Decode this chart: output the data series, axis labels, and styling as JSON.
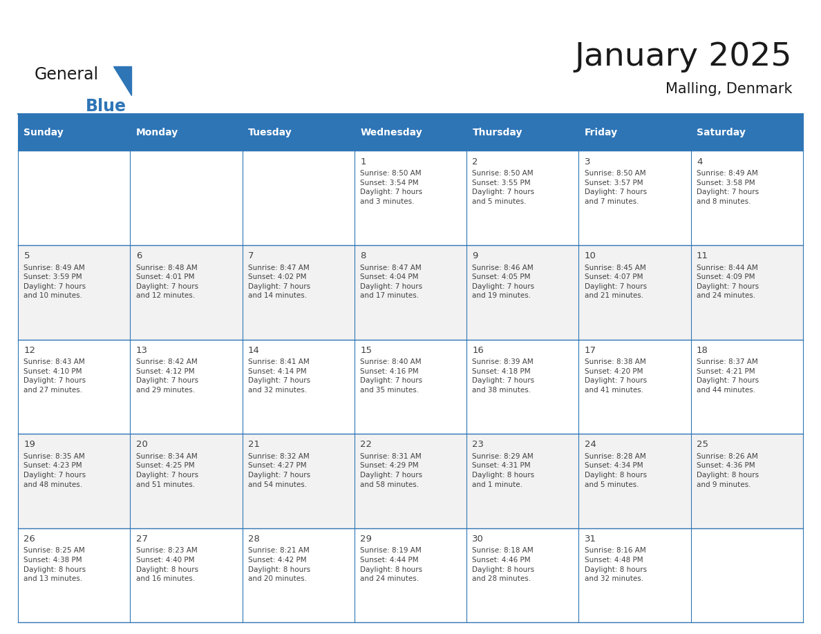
{
  "title": "January 2025",
  "subtitle": "Malling, Denmark",
  "days_of_week": [
    "Sunday",
    "Monday",
    "Tuesday",
    "Wednesday",
    "Thursday",
    "Friday",
    "Saturday"
  ],
  "header_bg": "#2E75B6",
  "header_text_color": "#FFFFFF",
  "cell_bg_gray": "#F2F2F2",
  "cell_bg_white": "#FFFFFF",
  "border_color": "#2E75B6",
  "text_color": "#404040",
  "title_color": "#1A1A1A",
  "logo_general_color": "#1A1A1A",
  "logo_blue_color": "#2E75B6",
  "calendar_data": [
    [
      {
        "day": "",
        "info": ""
      },
      {
        "day": "",
        "info": ""
      },
      {
        "day": "",
        "info": ""
      },
      {
        "day": "1",
        "info": "Sunrise: 8:50 AM\nSunset: 3:54 PM\nDaylight: 7 hours\nand 3 minutes."
      },
      {
        "day": "2",
        "info": "Sunrise: 8:50 AM\nSunset: 3:55 PM\nDaylight: 7 hours\nand 5 minutes."
      },
      {
        "day": "3",
        "info": "Sunrise: 8:50 AM\nSunset: 3:57 PM\nDaylight: 7 hours\nand 7 minutes."
      },
      {
        "day": "4",
        "info": "Sunrise: 8:49 AM\nSunset: 3:58 PM\nDaylight: 7 hours\nand 8 minutes."
      }
    ],
    [
      {
        "day": "5",
        "info": "Sunrise: 8:49 AM\nSunset: 3:59 PM\nDaylight: 7 hours\nand 10 minutes."
      },
      {
        "day": "6",
        "info": "Sunrise: 8:48 AM\nSunset: 4:01 PM\nDaylight: 7 hours\nand 12 minutes."
      },
      {
        "day": "7",
        "info": "Sunrise: 8:47 AM\nSunset: 4:02 PM\nDaylight: 7 hours\nand 14 minutes."
      },
      {
        "day": "8",
        "info": "Sunrise: 8:47 AM\nSunset: 4:04 PM\nDaylight: 7 hours\nand 17 minutes."
      },
      {
        "day": "9",
        "info": "Sunrise: 8:46 AM\nSunset: 4:05 PM\nDaylight: 7 hours\nand 19 minutes."
      },
      {
        "day": "10",
        "info": "Sunrise: 8:45 AM\nSunset: 4:07 PM\nDaylight: 7 hours\nand 21 minutes."
      },
      {
        "day": "11",
        "info": "Sunrise: 8:44 AM\nSunset: 4:09 PM\nDaylight: 7 hours\nand 24 minutes."
      }
    ],
    [
      {
        "day": "12",
        "info": "Sunrise: 8:43 AM\nSunset: 4:10 PM\nDaylight: 7 hours\nand 27 minutes."
      },
      {
        "day": "13",
        "info": "Sunrise: 8:42 AM\nSunset: 4:12 PM\nDaylight: 7 hours\nand 29 minutes."
      },
      {
        "day": "14",
        "info": "Sunrise: 8:41 AM\nSunset: 4:14 PM\nDaylight: 7 hours\nand 32 minutes."
      },
      {
        "day": "15",
        "info": "Sunrise: 8:40 AM\nSunset: 4:16 PM\nDaylight: 7 hours\nand 35 minutes."
      },
      {
        "day": "16",
        "info": "Sunrise: 8:39 AM\nSunset: 4:18 PM\nDaylight: 7 hours\nand 38 minutes."
      },
      {
        "day": "17",
        "info": "Sunrise: 8:38 AM\nSunset: 4:20 PM\nDaylight: 7 hours\nand 41 minutes."
      },
      {
        "day": "18",
        "info": "Sunrise: 8:37 AM\nSunset: 4:21 PM\nDaylight: 7 hours\nand 44 minutes."
      }
    ],
    [
      {
        "day": "19",
        "info": "Sunrise: 8:35 AM\nSunset: 4:23 PM\nDaylight: 7 hours\nand 48 minutes."
      },
      {
        "day": "20",
        "info": "Sunrise: 8:34 AM\nSunset: 4:25 PM\nDaylight: 7 hours\nand 51 minutes."
      },
      {
        "day": "21",
        "info": "Sunrise: 8:32 AM\nSunset: 4:27 PM\nDaylight: 7 hours\nand 54 minutes."
      },
      {
        "day": "22",
        "info": "Sunrise: 8:31 AM\nSunset: 4:29 PM\nDaylight: 7 hours\nand 58 minutes."
      },
      {
        "day": "23",
        "info": "Sunrise: 8:29 AM\nSunset: 4:31 PM\nDaylight: 8 hours\nand 1 minute."
      },
      {
        "day": "24",
        "info": "Sunrise: 8:28 AM\nSunset: 4:34 PM\nDaylight: 8 hours\nand 5 minutes."
      },
      {
        "day": "25",
        "info": "Sunrise: 8:26 AM\nSunset: 4:36 PM\nDaylight: 8 hours\nand 9 minutes."
      }
    ],
    [
      {
        "day": "26",
        "info": "Sunrise: 8:25 AM\nSunset: 4:38 PM\nDaylight: 8 hours\nand 13 minutes."
      },
      {
        "day": "27",
        "info": "Sunrise: 8:23 AM\nSunset: 4:40 PM\nDaylight: 8 hours\nand 16 minutes."
      },
      {
        "day": "28",
        "info": "Sunrise: 8:21 AM\nSunset: 4:42 PM\nDaylight: 8 hours\nand 20 minutes."
      },
      {
        "day": "29",
        "info": "Sunrise: 8:19 AM\nSunset: 4:44 PM\nDaylight: 8 hours\nand 24 minutes."
      },
      {
        "day": "30",
        "info": "Sunrise: 8:18 AM\nSunset: 4:46 PM\nDaylight: 8 hours\nand 28 minutes."
      },
      {
        "day": "31",
        "info": "Sunrise: 8:16 AM\nSunset: 4:48 PM\nDaylight: 8 hours\nand 32 minutes."
      },
      {
        "day": "",
        "info": ""
      }
    ]
  ]
}
